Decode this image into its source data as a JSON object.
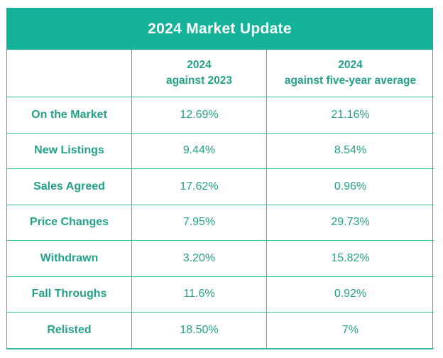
{
  "title": "2024 Market Update",
  "colors": {
    "banner_bg": "#15b49a",
    "banner_text": "#ffffff",
    "border": "#38b9a1",
    "text": "#24a287",
    "background": "#ffffff"
  },
  "table": {
    "col_headers": [
      {
        "line1": "2024",
        "line2": "against 2023"
      },
      {
        "line1": "2024",
        "line2": "against five-year average"
      }
    ],
    "rows": [
      {
        "label": "On the Market",
        "vs2023": "12.69%",
        "vs5yr": "21.16%"
      },
      {
        "label": "New Listings",
        "vs2023": "9.44%",
        "vs5yr": "8.54%"
      },
      {
        "label": "Sales Agreed",
        "vs2023": "17.62%",
        "vs5yr": "0.96%"
      },
      {
        "label": "Price Changes",
        "vs2023": "7.95%",
        "vs5yr": "29.73%"
      },
      {
        "label": "Withdrawn",
        "vs2023": "3.20%",
        "vs5yr": "15.82%"
      },
      {
        "label": "Fall Throughs",
        "vs2023": "11.6%",
        "vs5yr": "0.92%"
      },
      {
        "label": "Relisted",
        "vs2023": "18.50%",
        "vs5yr": "7%"
      }
    ]
  },
  "chart_data": {
    "type": "table",
    "title": "2024 Market Update",
    "categories": [
      "On the Market",
      "New Listings",
      "Sales Agreed",
      "Price Changes",
      "Withdrawn",
      "Fall Throughs",
      "Relisted"
    ],
    "series": [
      {
        "name": "2024 against 2023",
        "values": [
          12.69,
          9.44,
          17.62,
          7.95,
          3.2,
          11.6,
          18.5
        ]
      },
      {
        "name": "2024 against five-year average",
        "values": [
          21.16,
          8.54,
          0.96,
          29.73,
          15.82,
          0.92,
          7
        ]
      }
    ],
    "unit": "%"
  }
}
